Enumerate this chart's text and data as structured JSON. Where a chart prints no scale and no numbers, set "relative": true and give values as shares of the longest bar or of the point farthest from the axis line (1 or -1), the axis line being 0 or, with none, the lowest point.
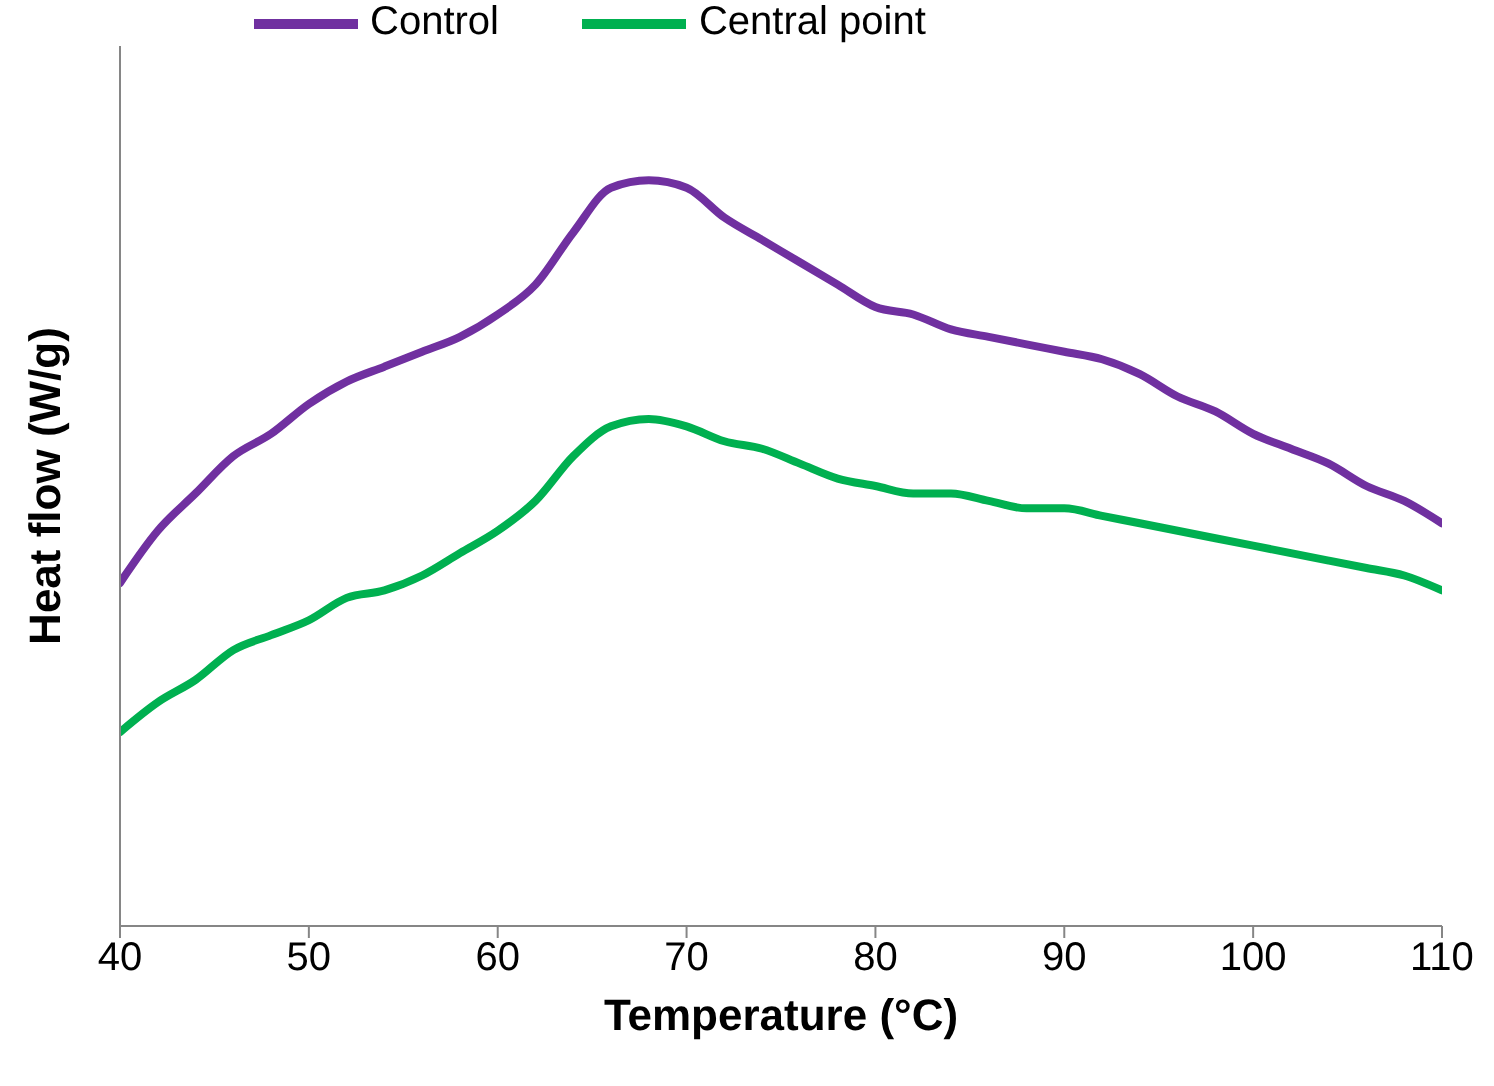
{
  "chart_data": {
    "type": "line",
    "xlabel": "Temperature (°C)",
    "ylabel": "Heat flow (W/g)",
    "relative": true,
    "x": [
      40,
      42,
      44,
      46,
      48,
      50,
      52,
      54,
      56,
      58,
      60,
      62,
      64,
      66,
      68,
      70,
      72,
      74,
      76,
      78,
      80,
      82,
      84,
      86,
      88,
      90,
      92,
      94,
      96,
      98,
      100,
      102,
      104,
      106,
      108,
      110
    ],
    "xlim": [
      40,
      110
    ],
    "xticks": [
      40,
      50,
      60,
      70,
      80,
      90,
      100,
      110
    ],
    "legend": "top",
    "marker": "none",
    "line_style": "solid",
    "series": [
      {
        "name": "Control",
        "color": "#7030a0",
        "values": [
          0.46,
          0.53,
          0.58,
          0.63,
          0.66,
          0.7,
          0.73,
          0.75,
          0.77,
          0.79,
          0.82,
          0.86,
          0.93,
          0.99,
          1,
          0.99,
          0.95,
          0.92,
          0.89,
          0.86,
          0.83,
          0.82,
          0.8,
          0.79,
          0.78,
          0.77,
          0.76,
          0.74,
          0.71,
          0.69,
          0.66,
          0.64,
          0.62,
          0.59,
          0.57,
          0.54
        ]
      },
      {
        "name": "Central point",
        "color": "#00b050",
        "values": [
          0.26,
          0.3,
          0.33,
          0.37,
          0.39,
          0.41,
          0.44,
          0.45,
          0.47,
          0.5,
          0.53,
          0.57,
          0.63,
          0.67,
          0.68,
          0.67,
          0.65,
          0.64,
          0.62,
          0.6,
          0.59,
          0.58,
          0.58,
          0.57,
          0.56,
          0.56,
          0.55,
          0.54,
          0.53,
          0.52,
          0.51,
          0.5,
          0.49,
          0.48,
          0.47,
          0.45
        ]
      }
    ]
  }
}
